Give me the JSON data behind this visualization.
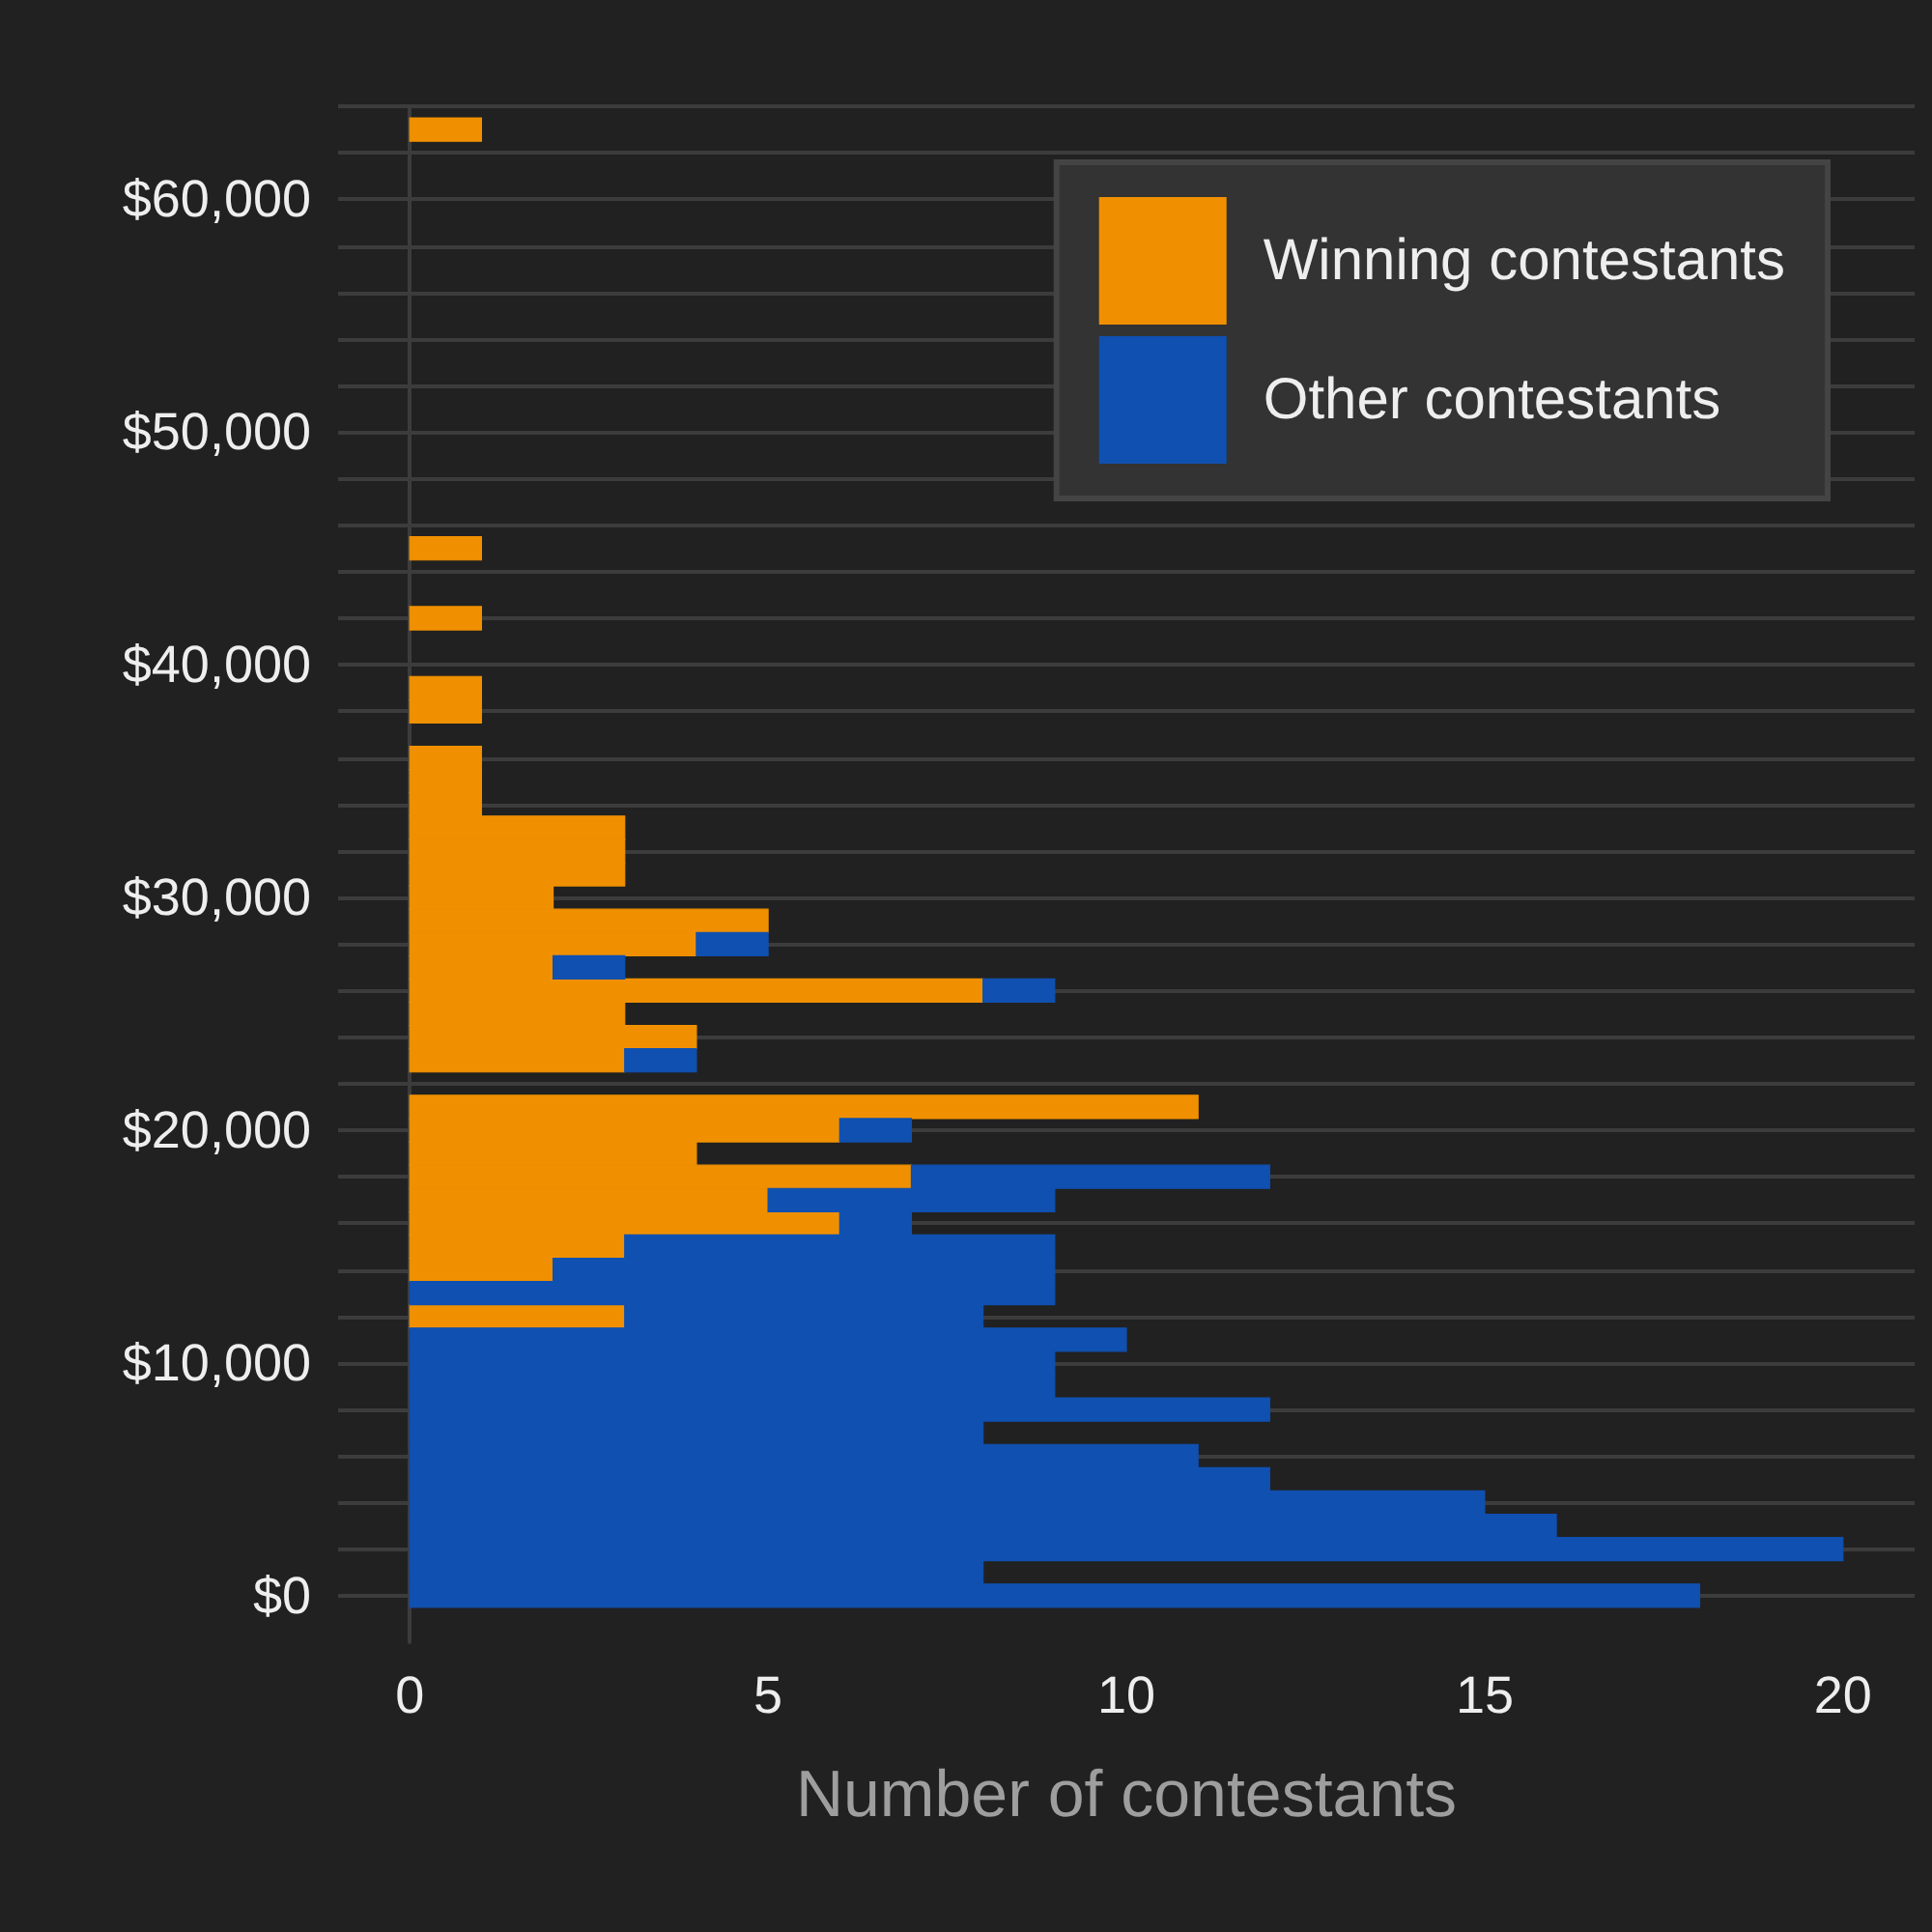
{
  "chart_data": {
    "type": "bar",
    "orientation": "horizontal",
    "stacked": true,
    "xlabel": "Number of contestants",
    "x": [
      0,
      1000,
      2000,
      3000,
      4000,
      5000,
      6000,
      7000,
      8000,
      9000,
      10000,
      11000,
      12000,
      13000,
      14000,
      15000,
      16000,
      17000,
      18000,
      19000,
      20000,
      21000,
      22000,
      23000,
      24000,
      25000,
      26000,
      27000,
      28000,
      29000,
      30000,
      31000,
      32000,
      33000,
      34000,
      35000,
      36000,
      37000,
      38000,
      39000,
      40000,
      41000,
      42000,
      43000,
      44000,
      45000,
      46000,
      47000,
      48000,
      49000,
      50000,
      51000,
      52000,
      53000,
      54000,
      55000,
      56000,
      57000,
      58000,
      59000,
      60000,
      61000,
      62000,
      63000
    ],
    "ylim": [
      -2000,
      64000
    ],
    "series": [
      {
        "name": "Winning contestants",
        "color": "#f09000",
        "values": [
          0,
          0,
          0,
          0,
          0,
          0,
          0,
          0,
          0,
          0,
          0,
          0,
          3,
          0,
          2,
          3,
          6,
          5,
          7,
          4,
          6,
          11,
          0,
          3,
          4,
          3,
          8,
          2,
          4,
          5,
          2,
          3,
          3,
          3,
          1,
          1,
          1,
          0,
          1,
          1,
          0,
          0,
          1,
          0,
          0,
          1,
          0,
          0,
          0,
          0,
          0,
          0,
          0,
          0,
          0,
          0,
          0,
          0,
          0,
          0,
          0,
          0,
          0,
          1
        ]
      },
      {
        "name": "Other contestants",
        "color": "#1050b0",
        "values": [
          18,
          8,
          20,
          16,
          15,
          12,
          11,
          8,
          12,
          9,
          9,
          10,
          5,
          9,
          7,
          6,
          1,
          4,
          5,
          0,
          1,
          0,
          0,
          1,
          0,
          0,
          1,
          1,
          1,
          0,
          0,
          0,
          0,
          0,
          0,
          0,
          0,
          0,
          0,
          0,
          0,
          0,
          0,
          0,
          0,
          0,
          0,
          0,
          0,
          0,
          0,
          0,
          0,
          0,
          0,
          0,
          0,
          0,
          0,
          0,
          0,
          0,
          0,
          0
        ]
      }
    ],
    "xlim": [
      -1,
      21
    ],
    "xticks": [
      0,
      5,
      10,
      15,
      20
    ],
    "yticks": [
      {
        "value": 0,
        "label": "$0"
      },
      {
        "value": 2000,
        "label": null
      },
      {
        "value": 4000,
        "label": null
      },
      {
        "value": 6000,
        "label": null
      },
      {
        "value": 8000,
        "label": null
      },
      {
        "value": 10000,
        "label": "$10,000"
      },
      {
        "value": 12000,
        "label": null
      },
      {
        "value": 14000,
        "label": null
      },
      {
        "value": 16000,
        "label": null
      },
      {
        "value": 18000,
        "label": null
      },
      {
        "value": 20000,
        "label": "$20,000"
      },
      {
        "value": 22000,
        "label": null
      },
      {
        "value": 24000,
        "label": null
      },
      {
        "value": 26000,
        "label": null
      },
      {
        "value": 28000,
        "label": null
      },
      {
        "value": 30000,
        "label": "$30,000"
      },
      {
        "value": 32000,
        "label": null
      },
      {
        "value": 34000,
        "label": null
      },
      {
        "value": 36000,
        "label": null
      },
      {
        "value": 38000,
        "label": null
      },
      {
        "value": 40000,
        "label": "$40,000"
      },
      {
        "value": 42000,
        "label": null
      },
      {
        "value": 44000,
        "label": null
      },
      {
        "value": 46000,
        "label": null
      },
      {
        "value": 48000,
        "label": null
      },
      {
        "value": 50000,
        "label": "$50,000"
      },
      {
        "value": 52000,
        "label": null
      },
      {
        "value": 54000,
        "label": null
      },
      {
        "value": 56000,
        "label": null
      },
      {
        "value": 58000,
        "label": null
      },
      {
        "value": 60000,
        "label": "$60,000"
      },
      {
        "value": 62000,
        "label": null
      },
      {
        "value": 64000,
        "label": null
      }
    ],
    "grid": "y",
    "legend": "top right"
  }
}
